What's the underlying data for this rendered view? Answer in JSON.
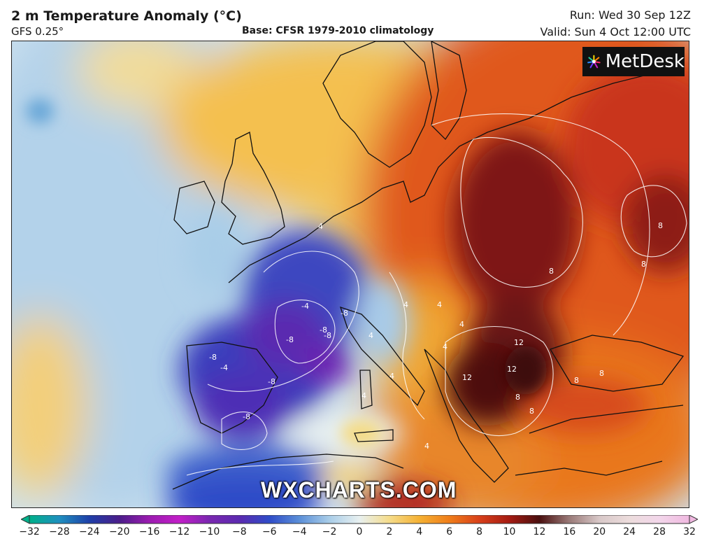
{
  "header": {
    "title": "2 m Temperature Anomaly (°C)",
    "model": "GFS 0.25°",
    "base": "Base: CFSR 1979-2010 climatology",
    "run": "Run: Wed 30 Sep 12Z",
    "valid": "Valid: Sun 4 Oct 12:00 UTC"
  },
  "logo": {
    "text": "MetDesk"
  },
  "watermark": "WXCHARTS.COM",
  "legend": {
    "ticks": [
      "−32",
      "−28",
      "−24",
      "−20",
      "−16",
      "−12",
      "−10",
      "−8",
      "−6",
      "−4",
      "−2",
      "0",
      "2",
      "4",
      "6",
      "8",
      "10",
      "12",
      "16",
      "20",
      "24",
      "28",
      "32"
    ],
    "stops": [
      {
        "value": -32,
        "color": "#00b08a"
      },
      {
        "value": -28,
        "color": "#1f8fbf"
      },
      {
        "value": -24,
        "color": "#1e3fa8"
      },
      {
        "value": -20,
        "color": "#4b1d8a"
      },
      {
        "value": -16,
        "color": "#9b1bb0"
      },
      {
        "value": -12,
        "color": "#c21ec8"
      },
      {
        "value": -10,
        "color": "#7a27b0"
      },
      {
        "value": -8,
        "color": "#5b2ab0"
      },
      {
        "value": -6,
        "color": "#2f4cc8"
      },
      {
        "value": -4,
        "color": "#5b8fd8"
      },
      {
        "value": -2,
        "color": "#a9cde8"
      },
      {
        "value": 0,
        "color": "#e8f0f0"
      },
      {
        "value": 2,
        "color": "#f5dc8a"
      },
      {
        "value": 4,
        "color": "#f5b133"
      },
      {
        "value": 6,
        "color": "#ef7d1a"
      },
      {
        "value": 8,
        "color": "#d8401a"
      },
      {
        "value": 10,
        "color": "#a51b12"
      },
      {
        "value": 12,
        "color": "#4a0f0f"
      },
      {
        "value": 16,
        "color": "#9a7a78"
      },
      {
        "value": 20,
        "color": "#d8c8c8"
      },
      {
        "value": 24,
        "color": "#ecdcdc"
      },
      {
        "value": 28,
        "color": "#f2d6ea"
      },
      {
        "value": 32,
        "color": "#f0b8e0"
      }
    ]
  },
  "contour_labels": [
    "4",
    "4",
    "-4",
    "-8",
    "-8",
    "-8",
    "-8",
    "-8",
    "-8",
    "-8",
    "-4",
    "4",
    "4",
    "4",
    "4",
    "4",
    "8",
    "8",
    "8",
    "8",
    "8",
    "12",
    "12",
    "12",
    "8",
    "8",
    "4",
    "4"
  ],
  "colors": {
    "sea_cold": "#b9d6ea",
    "anomaly_cold_strong": "#4a36b8",
    "anomaly_warm_strong": "#5a0f12",
    "anomaly_warm": "#e2541f"
  }
}
